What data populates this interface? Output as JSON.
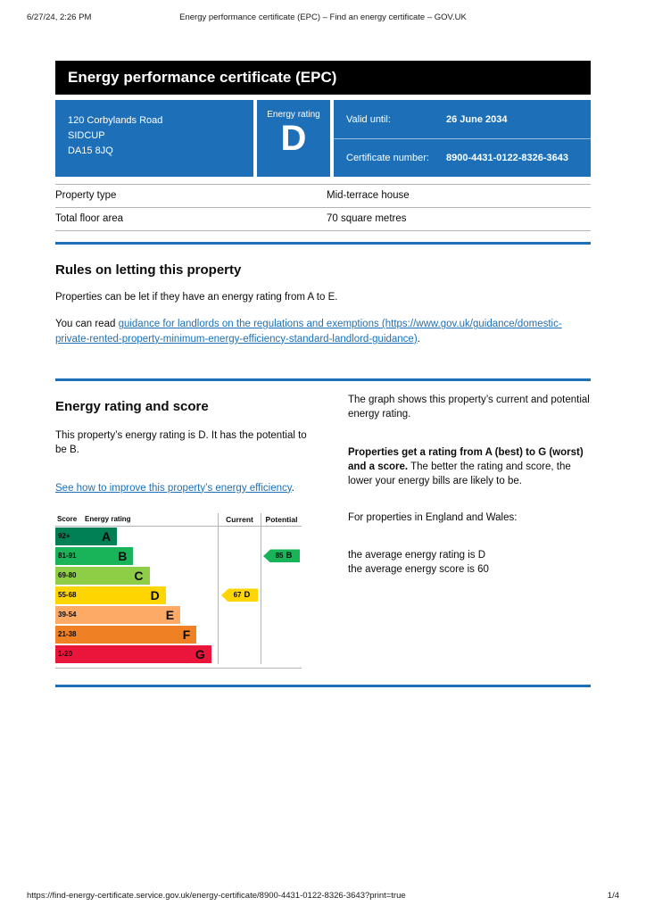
{
  "print_header": {
    "datetime": "6/27/24, 2:26 PM",
    "title": "Energy performance certificate (EPC) – Find an energy certificate – GOV.UK"
  },
  "banner": {
    "title": "Energy performance certificate (EPC)"
  },
  "summary": {
    "address_lines": [
      "120 Corbylands Road",
      "SIDCUP",
      "DA15 8JQ"
    ],
    "energy_rating_label": "Energy rating",
    "energy_rating": "D",
    "valid_until_label": "Valid until:",
    "valid_until_value": "26 June 2034",
    "certificate_number_label": "Certificate number:",
    "certificate_number_value": "8900-4431-0122-8326-3643"
  },
  "property_table": {
    "rows": [
      {
        "label": "Property type",
        "value": "Mid-terrace house"
      },
      {
        "label": "Total floor area",
        "value": "70 square metres"
      }
    ]
  },
  "letting_rules": {
    "heading": "Rules on letting this property",
    "para1": "Properties can be let if they have an energy rating from A to E.",
    "para2_prefix": "You can read ",
    "link_text": "guidance for landlords on the regulations and exemptions (https://www.gov.uk/guidance/domestic-private-rented-property-minimum-energy-efficiency-standard-landlord-guidance)",
    "para2_suffix": "."
  },
  "rating_section": {
    "heading": "Energy rating and score",
    "para1": "This property’s energy rating is D. It has the potential to be B.",
    "improve_link_text": "See how to improve this property’s energy efficiency",
    "improve_link_suffix": ".",
    "explainer": {
      "para1": "The graph shows this property’s current and potential energy rating.",
      "para2_bold": "Properties get a rating from A (best) to G (worst) and a score.",
      "para2_rest": " The better the rating and score, the lower your energy bills are likely to be.",
      "para3": "For properties in England and Wales:",
      "avg_rating_line": "the average energy rating is D",
      "avg_score_line": "the average energy score is 60"
    }
  },
  "chart_data": {
    "type": "epc-rating-bands",
    "headers": {
      "score": "Score",
      "rating": "Energy rating",
      "current": "Current",
      "potential": "Potential"
    },
    "bands": [
      {
        "score": "92+",
        "letter": "A",
        "color": "#008054",
        "width_pct": 38
      },
      {
        "score": "81-91",
        "letter": "B",
        "color": "#19b459",
        "width_pct": 48
      },
      {
        "score": "69-80",
        "letter": "C",
        "color": "#8dce46",
        "width_pct": 58
      },
      {
        "score": "55-68",
        "letter": "D",
        "color": "#ffd500",
        "width_pct": 68
      },
      {
        "score": "39-54",
        "letter": "E",
        "color": "#fcaa65",
        "width_pct": 77
      },
      {
        "score": "21-38",
        "letter": "F",
        "color": "#ef8023",
        "width_pct": 87
      },
      {
        "score": "1-20",
        "letter": "G",
        "color": "#e9153b",
        "width_pct": 96
      }
    ],
    "current": {
      "value": 67,
      "letter": "D",
      "band_index": 3,
      "color": "#ffd500"
    },
    "potential": {
      "value": 85,
      "letter": "B",
      "band_index": 1,
      "color": "#19b459"
    }
  },
  "print_footer": {
    "url": "https://find-energy-certificate.service.gov.uk/energy-certificate/8900-4431-0122-8326-3643?print=true",
    "page_indicator": "1/4"
  }
}
